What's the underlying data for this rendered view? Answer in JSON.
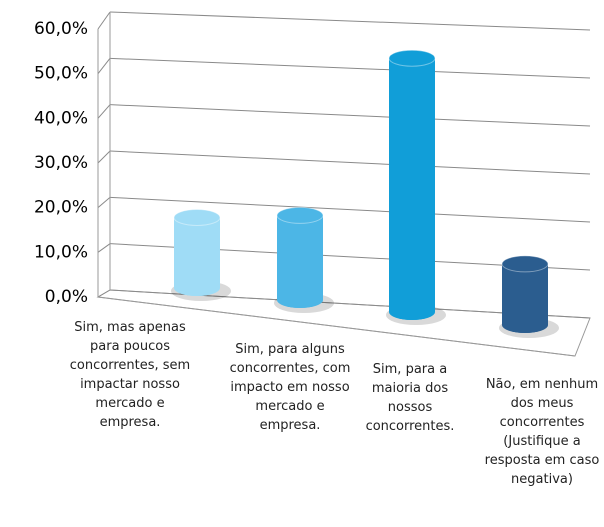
{
  "chart_data": {
    "type": "bar",
    "categories": [
      "Sim, mas apenas para poucos concorrentes, sem impactar nosso mercado e empresa.",
      "Sim, para alguns concorrentes, com impacto em nosso mercado e empresa.",
      "Sim, para a maioria dos nossos concorrentes.",
      "Não, em nenhum dos meus concorrentes (Justifique a resposta em caso negativa)"
    ],
    "values": [
      15,
      18,
      54,
      13
    ],
    "colors": [
      "#9fdcf6",
      "#4cb6e6",
      "#119ed8",
      "#2b5d8f"
    ],
    "ylim": [
      0,
      60
    ],
    "yticks": [
      {
        "value": 0,
        "label": "0,0%"
      },
      {
        "value": 10,
        "label": "10,0%"
      },
      {
        "value": 20,
        "label": "20,0%"
      },
      {
        "value": 30,
        "label": "30,0%"
      },
      {
        "value": 40,
        "label": "40,0%"
      },
      {
        "value": 50,
        "label": "50,0%"
      },
      {
        "value": 60,
        "label": "60,0%"
      }
    ],
    "grid": true
  }
}
